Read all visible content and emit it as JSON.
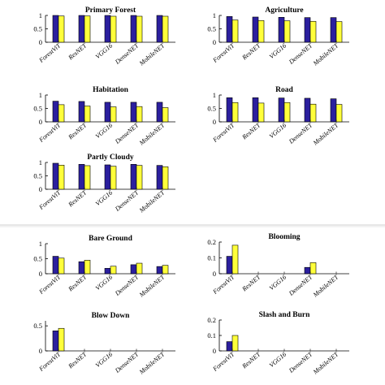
{
  "categories": [
    "ForestViT",
    "ResNET",
    "VGG16",
    "DenseNET",
    "MobileNET"
  ],
  "colors": {
    "series_a": "#2b1f9e",
    "series_b": "#ffff3a",
    "divider": "#cfcfcf"
  },
  "chart_data": [
    {
      "type": "bar",
      "title": "Primary Forest",
      "categories": [
        "ForestViT",
        "ResNET",
        "VGG16",
        "DenseNET",
        "MobileNET"
      ],
      "series": [
        {
          "values": [
            1.0,
            1.0,
            1.0,
            1.0,
            1.0
          ]
        },
        {
          "values": [
            0.98,
            0.98,
            0.97,
            0.97,
            0.97
          ]
        }
      ],
      "ylim": [
        0,
        1
      ],
      "yticks": [
        "0",
        "0.5",
        "1"
      ]
    },
    {
      "type": "bar",
      "title": "Agriculture",
      "categories": [
        "ForestViT",
        "ResNET",
        "VGG16",
        "DenseNET",
        "MobileNET"
      ],
      "series": [
        {
          "values": [
            0.96,
            0.94,
            0.93,
            0.92,
            0.92
          ]
        },
        {
          "values": [
            0.83,
            0.81,
            0.8,
            0.78,
            0.77
          ]
        }
      ],
      "ylim": [
        0,
        1
      ],
      "yticks": [
        "0",
        "0.5",
        "1"
      ]
    },
    {
      "type": "bar",
      "title": "Habitation",
      "categories": [
        "ForestViT",
        "ResNET",
        "VGG16",
        "DenseNET",
        "MobileNET"
      ],
      "series": [
        {
          "values": [
            0.77,
            0.76,
            0.73,
            0.73,
            0.73
          ]
        },
        {
          "values": [
            0.64,
            0.59,
            0.56,
            0.57,
            0.53
          ]
        }
      ],
      "ylim": [
        0,
        1
      ],
      "yticks": [
        "0",
        "0.5",
        "1"
      ]
    },
    {
      "type": "bar",
      "title": "Road",
      "categories": [
        "ForestViT",
        "ResNET",
        "VGG16",
        "DenseNET",
        "MobileNET"
      ],
      "series": [
        {
          "values": [
            0.9,
            0.9,
            0.89,
            0.88,
            0.86
          ]
        },
        {
          "values": [
            0.72,
            0.7,
            0.72,
            0.66,
            0.65
          ]
        }
      ],
      "ylim": [
        0,
        1
      ],
      "yticks": [
        "0",
        "0.5",
        "1"
      ]
    },
    {
      "type": "bar",
      "title": "Partly Cloudy",
      "categories": [
        "ForestViT",
        "ResNET",
        "VGG16",
        "DenseNET",
        "MobileNET"
      ],
      "series": [
        {
          "values": [
            0.97,
            0.93,
            0.91,
            0.93,
            0.89
          ]
        },
        {
          "values": [
            0.9,
            0.88,
            0.86,
            0.89,
            0.84
          ]
        }
      ],
      "ylim": [
        0,
        1
      ],
      "yticks": [
        "0",
        "0.5",
        "1"
      ]
    },
    {
      "type": "bar",
      "title": "Bare Ground",
      "categories": [
        "ForestViT",
        "ResNET",
        "VGG16",
        "DenseNET",
        "MobileNET"
      ],
      "series": [
        {
          "values": [
            0.58,
            0.4,
            0.18,
            0.3,
            0.24
          ]
        },
        {
          "values": [
            0.52,
            0.45,
            0.25,
            0.35,
            0.28
          ]
        }
      ],
      "ylim": [
        0,
        1
      ],
      "yticks": [
        "0",
        "0.5",
        "1"
      ]
    },
    {
      "type": "bar",
      "title": "Blooming",
      "categories": [
        "ForestViT",
        "ResNET",
        "VGG16",
        "DenseNET",
        "MobileNET"
      ],
      "series": [
        {
          "values": [
            0.11,
            0,
            0,
            0.04,
            0
          ]
        },
        {
          "values": [
            0.18,
            0,
            0,
            0.07,
            0
          ]
        }
      ],
      "ylim": [
        0,
        0.2
      ],
      "yticks": [
        "0",
        "0.1",
        "0.2"
      ]
    },
    {
      "type": "bar",
      "title": "Blow Down",
      "categories": [
        "ForestViT",
        "ResNET",
        "VGG16",
        "DenseNET",
        "MobileNET"
      ],
      "series": [
        {
          "values": [
            0.4,
            0,
            0,
            0,
            0
          ]
        },
        {
          "values": [
            0.45,
            0,
            0,
            0,
            0
          ]
        }
      ],
      "ylim": [
        0,
        0.6
      ],
      "yticks": [
        "0",
        "0.5"
      ]
    },
    {
      "type": "bar",
      "title": "Slash and Burn",
      "categories": [
        "ForestViT",
        "ResNET",
        "VGG16",
        "DenseNET",
        "MobileNET"
      ],
      "series": [
        {
          "values": [
            0.06,
            0,
            0,
            0,
            0
          ]
        },
        {
          "values": [
            0.1,
            0,
            0,
            0,
            0
          ]
        }
      ],
      "ylim": [
        0,
        0.2
      ],
      "yticks": [
        "0",
        "0.1",
        "0.2"
      ]
    }
  ]
}
